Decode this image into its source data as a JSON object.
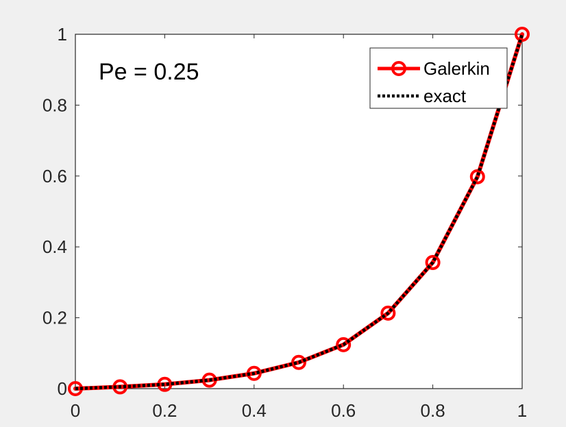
{
  "chart_data": {
    "type": "line",
    "title": "",
    "xlabel": "",
    "ylabel": "",
    "xlim": [
      0,
      1
    ],
    "ylim": [
      0,
      1
    ],
    "x_ticks": [
      "0",
      "0.2",
      "0.4",
      "0.6",
      "0.8",
      "1"
    ],
    "y_ticks": [
      "0",
      "0.2",
      "0.4",
      "0.6",
      "0.8",
      "1"
    ],
    "annotation": "Pe = 0.25",
    "legend_position": "top-right",
    "grid": false,
    "x": [
      0,
      0.1,
      0.2,
      0.3,
      0.4,
      0.5,
      0.6,
      0.7,
      0.8,
      0.9,
      1.0
    ],
    "series": [
      {
        "name": "Galerkin",
        "style": "solid-circle-markers",
        "color": "#ff0000",
        "values": [
          0,
          0.005,
          0.012,
          0.024,
          0.043,
          0.074,
          0.124,
          0.213,
          0.356,
          0.598,
          1.0
        ]
      },
      {
        "name": "exact",
        "style": "dotted",
        "color": "#000000",
        "values": [
          0,
          0.005,
          0.012,
          0.024,
          0.043,
          0.074,
          0.124,
          0.213,
          0.356,
          0.598,
          1.0
        ]
      }
    ]
  }
}
